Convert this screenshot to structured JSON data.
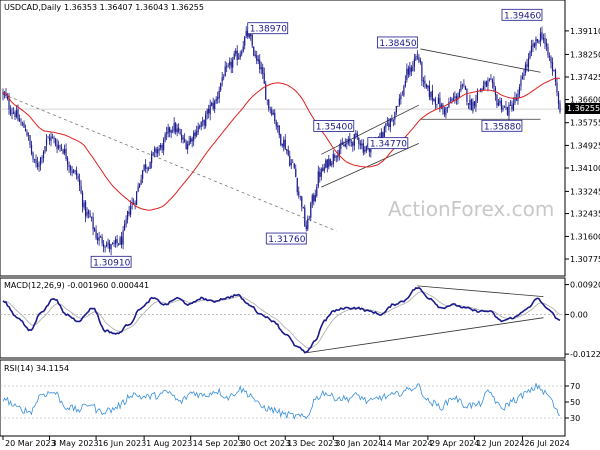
{
  "chart_data": {
    "type": "candlestick",
    "symbol_header": "USDCAD,Daily",
    "ohlc_header": "1.36353 1.36407 1.36043 1.36255",
    "watermark": "ActionForex.com",
    "last_price_label": "1.36255",
    "price_axis": {
      "min": 1.303,
      "max": 1.398,
      "ticks": [
        "1.39110",
        "1.38250",
        "1.37425",
        "1.36600",
        "1.35755",
        "1.34925",
        "1.34100",
        "1.33245",
        "1.32435",
        "1.31600",
        "1.30775"
      ]
    },
    "x_ticks": [
      "20 Mar 2023",
      "3 May 2023",
      "16 Jun 2023",
      "1 Aug 2023",
      "14 Sep 2023",
      "30 Oct 2023",
      "13 Dec 2023",
      "30 Jan 2024",
      "14 Mar 2024",
      "29 Apr 2024",
      "12 Jun 2024",
      "26 Jul 2024"
    ],
    "x_tick_index": [
      0,
      31,
      62,
      94,
      125,
      157,
      188,
      220,
      251,
      283,
      314,
      346
    ],
    "num_bars": 372,
    "price_anchors": [
      [
        0,
        1.368
      ],
      [
        6,
        1.362
      ],
      [
        14,
        1.356
      ],
      [
        22,
        1.342
      ],
      [
        31,
        1.352
      ],
      [
        38,
        1.349
      ],
      [
        48,
        1.339
      ],
      [
        56,
        1.324
      ],
      [
        64,
        1.315
      ],
      [
        72,
        1.312
      ],
      [
        78,
        1.314
      ],
      [
        86,
        1.328
      ],
      [
        95,
        1.342
      ],
      [
        104,
        1.348
      ],
      [
        113,
        1.356
      ],
      [
        122,
        1.35
      ],
      [
        131,
        1.356
      ],
      [
        140,
        1.364
      ],
      [
        148,
        1.376
      ],
      [
        156,
        1.382
      ],
      [
        163,
        1.3897
      ],
      [
        170,
        1.379
      ],
      [
        178,
        1.363
      ],
      [
        186,
        1.351
      ],
      [
        193,
        1.342
      ],
      [
        198,
        1.33
      ],
      [
        202,
        1.319
      ],
      [
        206,
        1.329
      ],
      [
        211,
        1.339
      ],
      [
        218,
        1.344
      ],
      [
        224,
        1.348
      ],
      [
        230,
        1.35
      ],
      [
        236,
        1.352
      ],
      [
        241,
        1.348
      ],
      [
        247,
        1.35
      ],
      [
        252,
        1.353
      ],
      [
        258,
        1.358
      ],
      [
        264,
        1.366
      ],
      [
        270,
        1.376
      ],
      [
        276,
        1.382
      ],
      [
        281,
        1.37
      ],
      [
        288,
        1.366
      ],
      [
        294,
        1.362
      ],
      [
        300,
        1.366
      ],
      [
        306,
        1.37
      ],
      [
        312,
        1.364
      ],
      [
        318,
        1.37
      ],
      [
        324,
        1.372
      ],
      [
        330,
        1.365
      ],
      [
        336,
        1.362
      ],
      [
        342,
        1.366
      ],
      [
        348,
        1.378
      ],
      [
        354,
        1.386
      ],
      [
        359,
        1.39
      ],
      [
        363,
        1.382
      ],
      [
        367,
        1.376
      ],
      [
        371,
        1.3625
      ]
    ],
    "price_labels": [
      {
        "text": "1.38970",
        "price": 1.3897,
        "bar": 163
      },
      {
        "text": "1.39460",
        "price": 1.3946,
        "bar": 359
      },
      {
        "text": "1.38450",
        "price": 1.3845,
        "bar": 276
      },
      {
        "text": "1.35400",
        "price": 1.354,
        "bar": 207
      },
      {
        "text": "1.34770",
        "price": 1.3477,
        "bar": 243
      },
      {
        "text": "1.35880",
        "price": 1.3588,
        "bar": 319
      },
      {
        "text": "1.31760",
        "price": 1.3176,
        "bar": 202
      },
      {
        "text": "1.30910",
        "price": 1.3091,
        "bar": 72
      }
    ],
    "trendlines": [
      {
        "style": "dashed",
        "from": [
          0,
          1.368
        ],
        "to": [
          222,
          1.318
        ]
      },
      {
        "style": "solid",
        "from": [
          212,
          1.346
        ],
        "to": [
          277,
          1.364
        ]
      },
      {
        "style": "solid",
        "from": [
          212,
          1.334
        ],
        "to": [
          277,
          1.35
        ]
      },
      {
        "style": "solid",
        "from": [
          278,
          1.3845
        ],
        "to": [
          358,
          1.376
        ]
      },
      {
        "style": "solid",
        "from": [
          278,
          1.3588
        ],
        "to": [
          358,
          1.3588
        ]
      }
    ],
    "macd": {
      "label": "MACD(12,26,9) -0.001960 0.000441",
      "range": [
        -0.0128,
        0.01
      ],
      "ticks": [
        "0.009205",
        "0.00",
        "-0.012216"
      ],
      "tick_values": [
        0.009205,
        0.0,
        -0.012216
      ],
      "anchors": [
        [
          0,
          0.004
        ],
        [
          10,
          -0.001
        ],
        [
          18,
          -0.005
        ],
        [
          26,
          0.001
        ],
        [
          34,
          0.005
        ],
        [
          42,
          0.0
        ],
        [
          50,
          -0.002
        ],
        [
          60,
          0.002
        ],
        [
          68,
          -0.005
        ],
        [
          76,
          -0.006
        ],
        [
          84,
          -0.003
        ],
        [
          92,
          0.002
        ],
        [
          100,
          0.005
        ],
        [
          108,
          0.003
        ],
        [
          116,
          0.005
        ],
        [
          124,
          0.003
        ],
        [
          132,
          0.005
        ],
        [
          140,
          0.004
        ],
        [
          148,
          0.005
        ],
        [
          156,
          0.006
        ],
        [
          164,
          0.003
        ],
        [
          172,
          0.0
        ],
        [
          180,
          -0.002
        ],
        [
          188,
          -0.006
        ],
        [
          196,
          -0.01
        ],
        [
          202,
          -0.0118
        ],
        [
          208,
          -0.008
        ],
        [
          214,
          -0.002
        ],
        [
          220,
          0.001
        ],
        [
          228,
          0.002
        ],
        [
          236,
          0.002
        ],
        [
          244,
          0.001
        ],
        [
          252,
          0.0
        ],
        [
          260,
          0.003
        ],
        [
          266,
          0.004
        ],
        [
          276,
          0.0082
        ],
        [
          284,
          0.005
        ],
        [
          292,
          0.002
        ],
        [
          300,
          0.003
        ],
        [
          308,
          0.002
        ],
        [
          316,
          0.001
        ],
        [
          324,
          0.001
        ],
        [
          332,
          -0.002
        ],
        [
          340,
          -0.001
        ],
        [
          350,
          0.002
        ],
        [
          356,
          0.005
        ],
        [
          362,
          0.002
        ],
        [
          371,
          -0.002
        ]
      ],
      "trendlines": [
        {
          "from": [
            276,
            0.0088
          ],
          "to": [
            360,
            0.0055
          ]
        },
        {
          "from": [
            202,
            -0.0118
          ],
          "to": [
            360,
            -0.001
          ]
        }
      ]
    },
    "rsi": {
      "label": "RSI(14) 34.1154",
      "range": [
        10,
        100
      ],
      "ticks": [
        "70",
        "50",
        "30"
      ],
      "tick_values": [
        70,
        50,
        30
      ],
      "anchors": [
        [
          0,
          55
        ],
        [
          10,
          42
        ],
        [
          18,
          38
        ],
        [
          26,
          60
        ],
        [
          34,
          62
        ],
        [
          42,
          44
        ],
        [
          50,
          40
        ],
        [
          58,
          48
        ],
        [
          64,
          38
        ],
        [
          72,
          40
        ],
        [
          78,
          46
        ],
        [
          86,
          60
        ],
        [
          94,
          56
        ],
        [
          102,
          58
        ],
        [
          110,
          62
        ],
        [
          118,
          50
        ],
        [
          126,
          62
        ],
        [
          134,
          58
        ],
        [
          142,
          64
        ],
        [
          150,
          56
        ],
        [
          158,
          66
        ],
        [
          164,
          60
        ],
        [
          172,
          44
        ],
        [
          180,
          40
        ],
        [
          188,
          34
        ],
        [
          196,
          32
        ],
        [
          202,
          30
        ],
        [
          208,
          54
        ],
        [
          214,
          62
        ],
        [
          220,
          56
        ],
        [
          228,
          54
        ],
        [
          236,
          58
        ],
        [
          244,
          50
        ],
        [
          252,
          56
        ],
        [
          260,
          58
        ],
        [
          268,
          64
        ],
        [
          276,
          70
        ],
        [
          284,
          50
        ],
        [
          292,
          44
        ],
        [
          300,
          56
        ],
        [
          308,
          46
        ],
        [
          316,
          46
        ],
        [
          324,
          62
        ],
        [
          332,
          42
        ],
        [
          340,
          52
        ],
        [
          350,
          62
        ],
        [
          356,
          70
        ],
        [
          362,
          60
        ],
        [
          371,
          34
        ]
      ]
    }
  }
}
